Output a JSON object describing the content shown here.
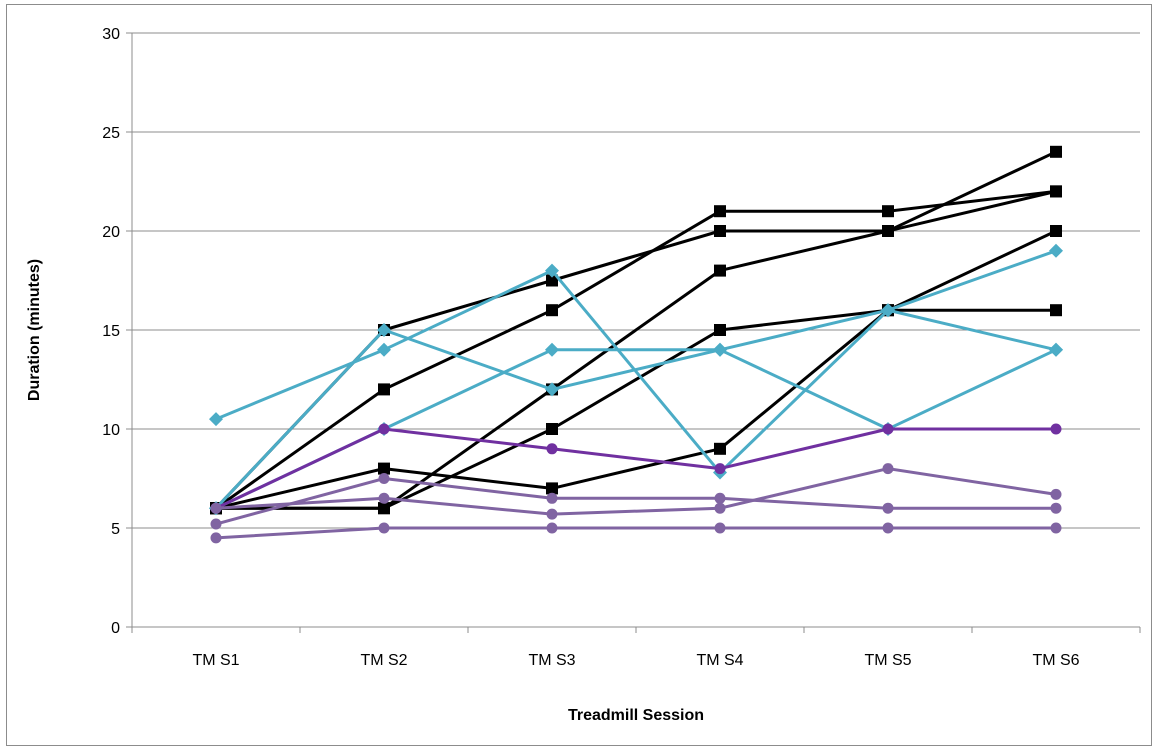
{
  "chart_data": {
    "type": "line",
    "title": "",
    "xlabel": "Treadmill Session",
    "ylabel": "Duration (minutes)",
    "categories": [
      "TM S1",
      "TM S2",
      "TM S3",
      "TM S4",
      "TM S5",
      "TM S6"
    ],
    "ylim": [
      0,
      30
    ],
    "yticks": [
      0,
      5,
      10,
      15,
      20,
      25,
      30
    ],
    "grid": true,
    "legend": "none",
    "series": [
      {
        "marker": "square",
        "color": "#000000",
        "values": [
          6,
          15,
          17.5,
          20,
          20,
          22
        ]
      },
      {
        "marker": "square",
        "color": "#000000",
        "values": [
          6,
          12,
          16,
          21,
          21,
          22
        ]
      },
      {
        "marker": "square",
        "color": "#000000",
        "values": [
          6,
          6,
          12,
          18,
          20,
          24
        ]
      },
      {
        "marker": "square",
        "color": "#000000",
        "values": [
          6,
          6,
          10,
          15,
          16,
          16
        ]
      },
      {
        "marker": "square",
        "color": "#000000",
        "values": [
          6,
          8,
          7,
          9,
          16,
          20
        ]
      },
      {
        "marker": "diamond",
        "color": "#4bacc6",
        "values": [
          10.5,
          14,
          18,
          7.8,
          16,
          14
        ]
      },
      {
        "marker": "diamond",
        "color": "#4bacc6",
        "values": [
          6,
          15,
          12,
          14,
          10,
          14
        ]
      },
      {
        "marker": "diamond",
        "color": "#4bacc6",
        "values": [
          6,
          10,
          14,
          14,
          16,
          19
        ]
      },
      {
        "marker": "circle",
        "color": "#7030a0",
        "values": [
          6,
          10,
          9,
          8,
          10,
          10
        ]
      },
      {
        "marker": "circle",
        "color": "#8064a2",
        "values": [
          5.2,
          7.5,
          6.5,
          6.5,
          6,
          6
        ]
      },
      {
        "marker": "circle",
        "color": "#8064a2",
        "values": [
          6,
          6.5,
          5.7,
          6,
          8,
          6.7
        ]
      },
      {
        "marker": "circle",
        "color": "#8064a2",
        "values": [
          4.5,
          5,
          5,
          5,
          5,
          5
        ]
      }
    ]
  }
}
